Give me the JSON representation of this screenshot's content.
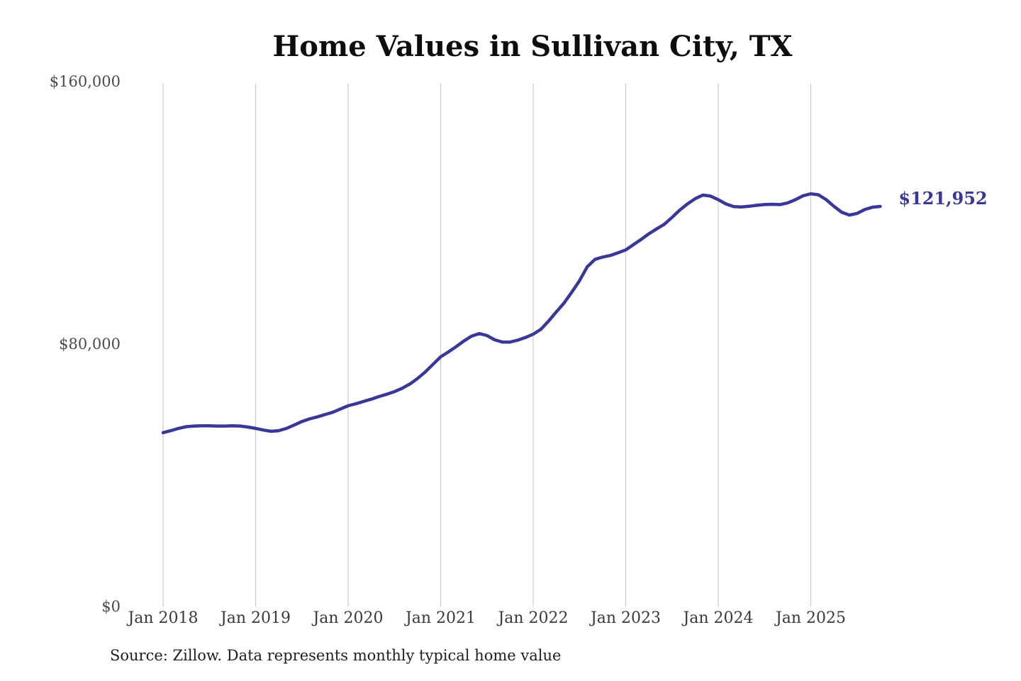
{
  "chart_data": {
    "type": "line",
    "title": "Home Values in Sullivan City, TX",
    "xlabel": "",
    "ylabel": "",
    "grid": "vertical-year-lines",
    "legend": "none",
    "x_tick_labels": [
      "Jan 2018",
      "Jan 2019",
      "Jan 2020",
      "Jan 2021",
      "Jan 2022",
      "Jan 2023",
      "Jan 2024",
      "Jan 2025"
    ],
    "y_ticks": [
      {
        "label": "$160,000",
        "value": 160000
      },
      {
        "label": "$80,000",
        "value": 80000
      },
      {
        "label": "$0",
        "value": 0
      }
    ],
    "ylim": [
      0,
      160000
    ],
    "line_color": "#38389b",
    "latest": {
      "label": "$121,952",
      "value": 121952
    },
    "series": [
      {
        "name": "Monthly typical home value",
        "cadence": "monthly",
        "start": "Jan 2018",
        "end": "Oct 2025",
        "values": [
          53000,
          53600,
          54300,
          54800,
          55000,
          55100,
          55100,
          55000,
          55000,
          55100,
          55000,
          54700,
          54300,
          53800,
          53400,
          53600,
          54300,
          55300,
          56400,
          57200,
          57800,
          58500,
          59200,
          60200,
          61200,
          61800,
          62500,
          63200,
          64000,
          64700,
          65500,
          66500,
          67800,
          69500,
          71500,
          73800,
          76100,
          77600,
          79200,
          80900,
          82400,
          83200,
          82600,
          81300,
          80600,
          80600,
          81200,
          82000,
          83000,
          84500,
          87000,
          89800,
          92500,
          95800,
          99300,
          103500,
          105800,
          106500,
          107000,
          107800,
          108700,
          110300,
          111900,
          113600,
          115100,
          116500,
          118600,
          120800,
          122700,
          124300,
          125400,
          125100,
          124000,
          122700,
          121900,
          121800,
          122000,
          122300,
          122500,
          122600,
          122500,
          123000,
          124000,
          125200,
          125800,
          125500,
          124000,
          122000,
          120200,
          119300,
          119800,
          121000,
          121700,
          121952
        ]
      }
    ],
    "source_note": "Source: Zillow. Data represents monthly typical home value"
  }
}
